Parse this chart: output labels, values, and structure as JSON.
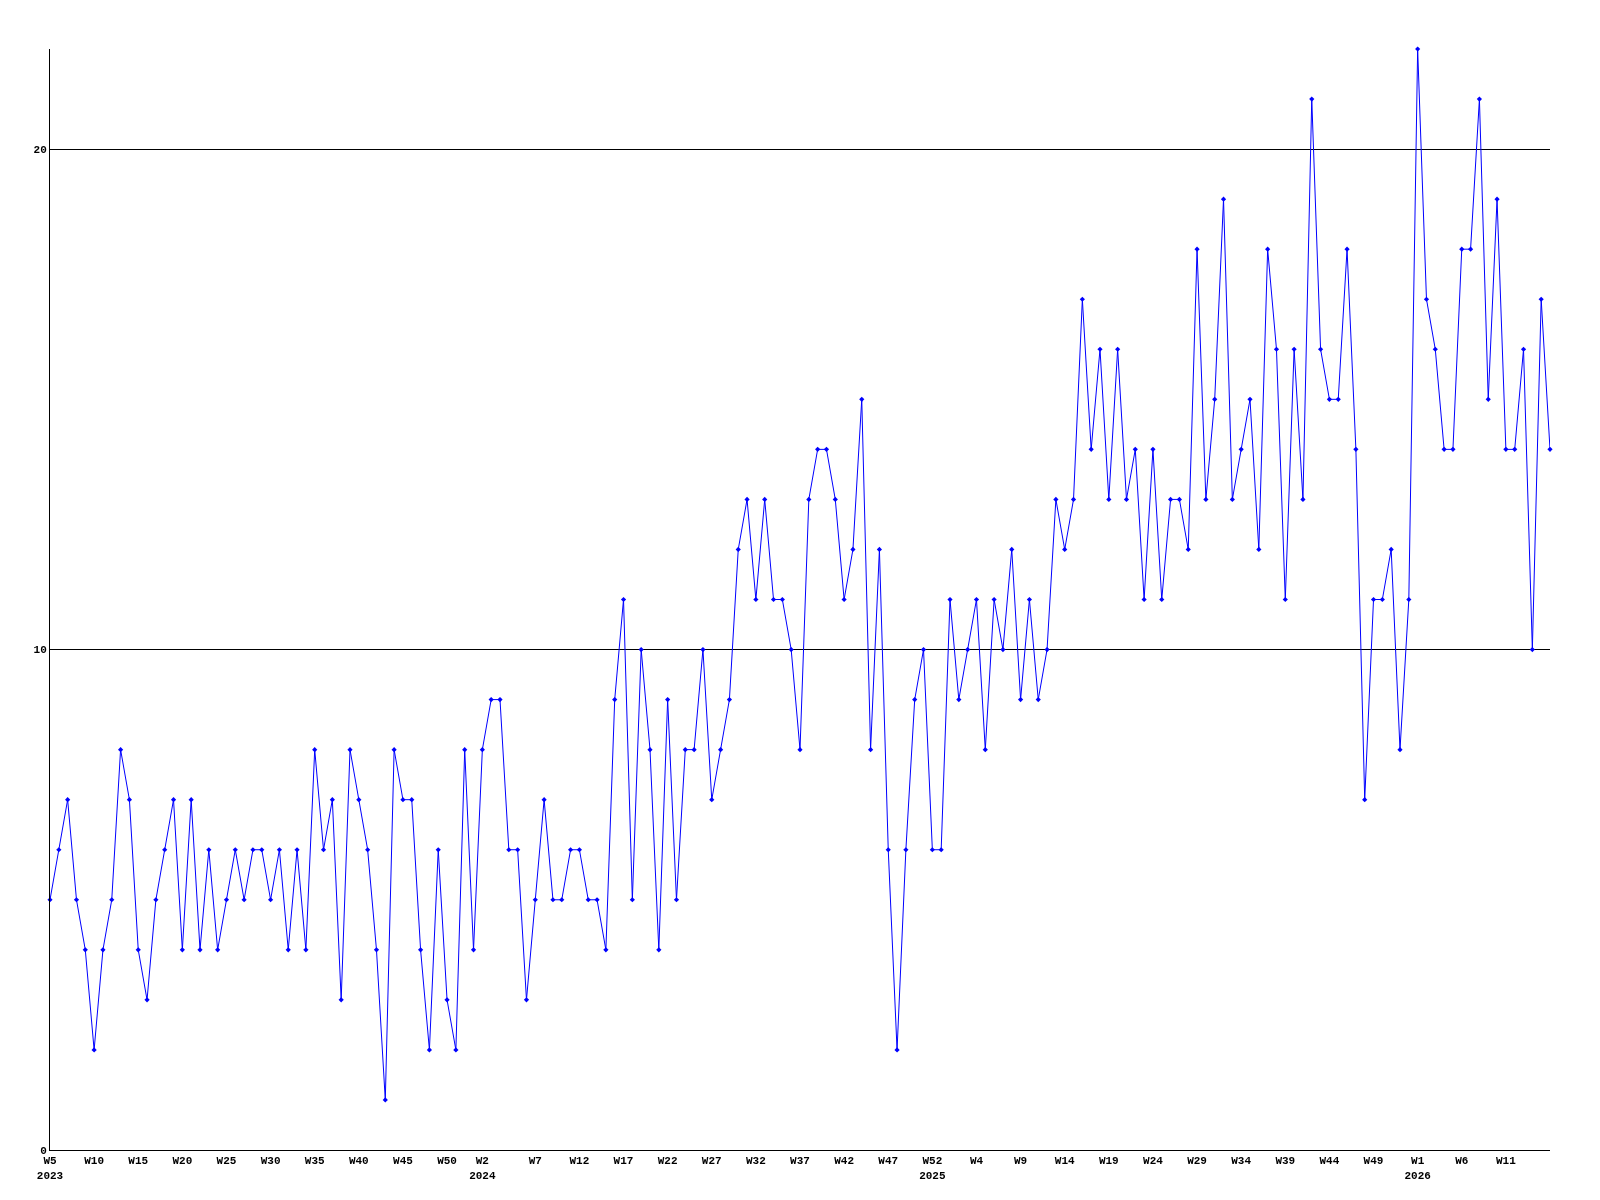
{
  "chart_data": {
    "type": "line",
    "categories": [
      "W5\n2023",
      null,
      null,
      null,
      null,
      "W10",
      null,
      null,
      null,
      null,
      "W15",
      null,
      null,
      null,
      null,
      "W20",
      null,
      null,
      null,
      null,
      "W25",
      null,
      null,
      null,
      null,
      "W30",
      null,
      null,
      null,
      null,
      "W35",
      null,
      null,
      null,
      null,
      "W40",
      null,
      null,
      null,
      null,
      "W45",
      null,
      null,
      null,
      null,
      "W50",
      null,
      null,
      null,
      "W2\n2024",
      null,
      null,
      null,
      null,
      null,
      "W7",
      null,
      null,
      null,
      null,
      "W12",
      null,
      null,
      null,
      null,
      "W17",
      null,
      null,
      null,
      null,
      "W22",
      null,
      null,
      null,
      null,
      "W27",
      null,
      null,
      null,
      null,
      "W32",
      null,
      null,
      null,
      null,
      "W37",
      null,
      null,
      null,
      null,
      "W42",
      null,
      null,
      null,
      null,
      "W47",
      null,
      null,
      null,
      null,
      "W52\n2025",
      null,
      null,
      null,
      null,
      "W4",
      null,
      null,
      null,
      null,
      "W9",
      null,
      null,
      null,
      null,
      "W14",
      null,
      null,
      null,
      null,
      "W19",
      null,
      null,
      null,
      null,
      "W24",
      null,
      null,
      null,
      null,
      "W29",
      null,
      null,
      null,
      null,
      "W34",
      null,
      null,
      null,
      null,
      "W39",
      null,
      null,
      null,
      null,
      "W44",
      null,
      null,
      null,
      null,
      "W49",
      null,
      null,
      null,
      null,
      "W1\n2026",
      null,
      null,
      null,
      null,
      "W6",
      null,
      null,
      null,
      null,
      "W11",
      null,
      null,
      null,
      null,
      null
    ],
    "series": [
      {
        "color": "#0000ff",
        "values": [
          5,
          6,
          7,
          5,
          4,
          2,
          4,
          5,
          8,
          7,
          4,
          3,
          5,
          6,
          7,
          4,
          7,
          4,
          6,
          4,
          5,
          6,
          5,
          6,
          6,
          5,
          6,
          4,
          6,
          4,
          8,
          6,
          7,
          3,
          8,
          7,
          6,
          4,
          1,
          8,
          7,
          7,
          4,
          2,
          6,
          3,
          2,
          8,
          4,
          8,
          9,
          9,
          6,
          6,
          3,
          5,
          7,
          5,
          5,
          6,
          6,
          5,
          5,
          4,
          9,
          11,
          5,
          10,
          8,
          4,
          9,
          5,
          8,
          8,
          10,
          7,
          8,
          9,
          12,
          13,
          11,
          13,
          11,
          11,
          10,
          8,
          13,
          14,
          14,
          13,
          11,
          12,
          15,
          8,
          12,
          6,
          2,
          6,
          9,
          10,
          6,
          6,
          11,
          9,
          10,
          11,
          8,
          11,
          10,
          12,
          9,
          11,
          9,
          10,
          13,
          12,
          13,
          17,
          14,
          16,
          13,
          16,
          13,
          14,
          11,
          14,
          11,
          13,
          13,
          12,
          18,
          13,
          15,
          19,
          13,
          14,
          15,
          12,
          18,
          16,
          11,
          16,
          13,
          21,
          16,
          15,
          15,
          18,
          14,
          7,
          11,
          11,
          12,
          8,
          11,
          22,
          17,
          16,
          14,
          14,
          18,
          18,
          21,
          15,
          19,
          14,
          14,
          16,
          10,
          17,
          14
        ]
      }
    ],
    "ylim": [
      0,
      22
    ],
    "yticks": [
      0,
      10,
      20
    ],
    "grid": "y",
    "marker": "diamond",
    "line_style": "solid"
  }
}
